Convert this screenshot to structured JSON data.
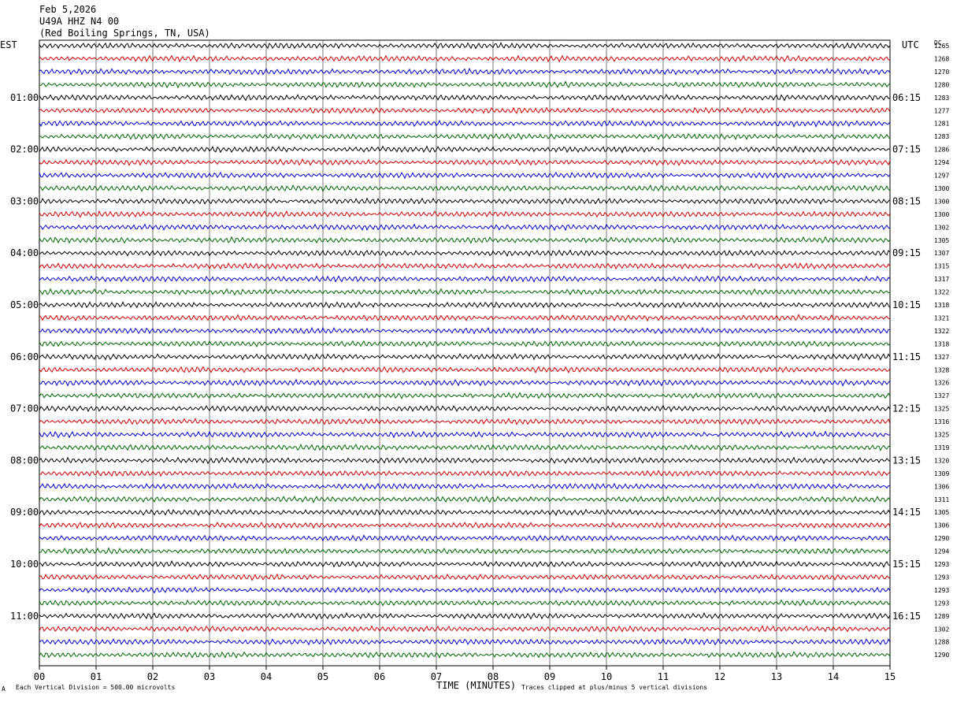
{
  "header": {
    "date": "Feb 5,2026",
    "station": "U49A HHZ N4 00",
    "location": "(Red Boiling Springs, TN, USA)"
  },
  "labels": {
    "left_timezone": "EST",
    "right_timezone": "UTC",
    "dc_header": "DC"
  },
  "footer": {
    "scale_mark": "A",
    "scale_text": "Each Vertical Division =  500.00 microvolts",
    "xlabel": "TIME (MINUTES)",
    "clip_note": "Traces clipped at plus/minus 5 vertical divisions"
  },
  "colors": {
    "trace_cycle": [
      "#000000",
      "#cc0000",
      "#0000cc",
      "#006600"
    ],
    "grid": "#555555"
  },
  "chart_data": {
    "type": "line",
    "title": "",
    "xlabel": "TIME (MINUTES)",
    "ylabel": "",
    "xlim": [
      0,
      15
    ],
    "x_ticks": [
      "00",
      "01",
      "02",
      "03",
      "04",
      "05",
      "06",
      "07",
      "08",
      "09",
      "10",
      "11",
      "12",
      "13",
      "14",
      "15"
    ],
    "trace_minutes": 15,
    "hour_labels_left": [
      "01:00",
      "02:00",
      "03:00",
      "04:00",
      "05:00",
      "06:00",
      "07:00",
      "08:00",
      "09:00",
      "10:00",
      "11:00"
    ],
    "hour_labels_right": [
      "06:15",
      "07:15",
      "08:15",
      "09:15",
      "10:15",
      "11:15",
      "12:15",
      "13:15",
      "14:15",
      "15:15",
      "16:15"
    ],
    "dc_values": [
      1265,
      1268,
      1270,
      1280,
      1283,
      1277,
      1281,
      1283,
      1286,
      1294,
      1297,
      1300,
      1300,
      1300,
      1302,
      1305,
      1307,
      1315,
      1317,
      1322,
      1318,
      1321,
      1322,
      1318,
      1327,
      1328,
      1326,
      1327,
      1325,
      1316,
      1325,
      1319,
      1320,
      1309,
      1306,
      1311,
      1305,
      1306,
      1290,
      1294,
      1293,
      1293,
      1293,
      1293,
      1289,
      1302,
      1288,
      1290
    ],
    "grid": true
  }
}
